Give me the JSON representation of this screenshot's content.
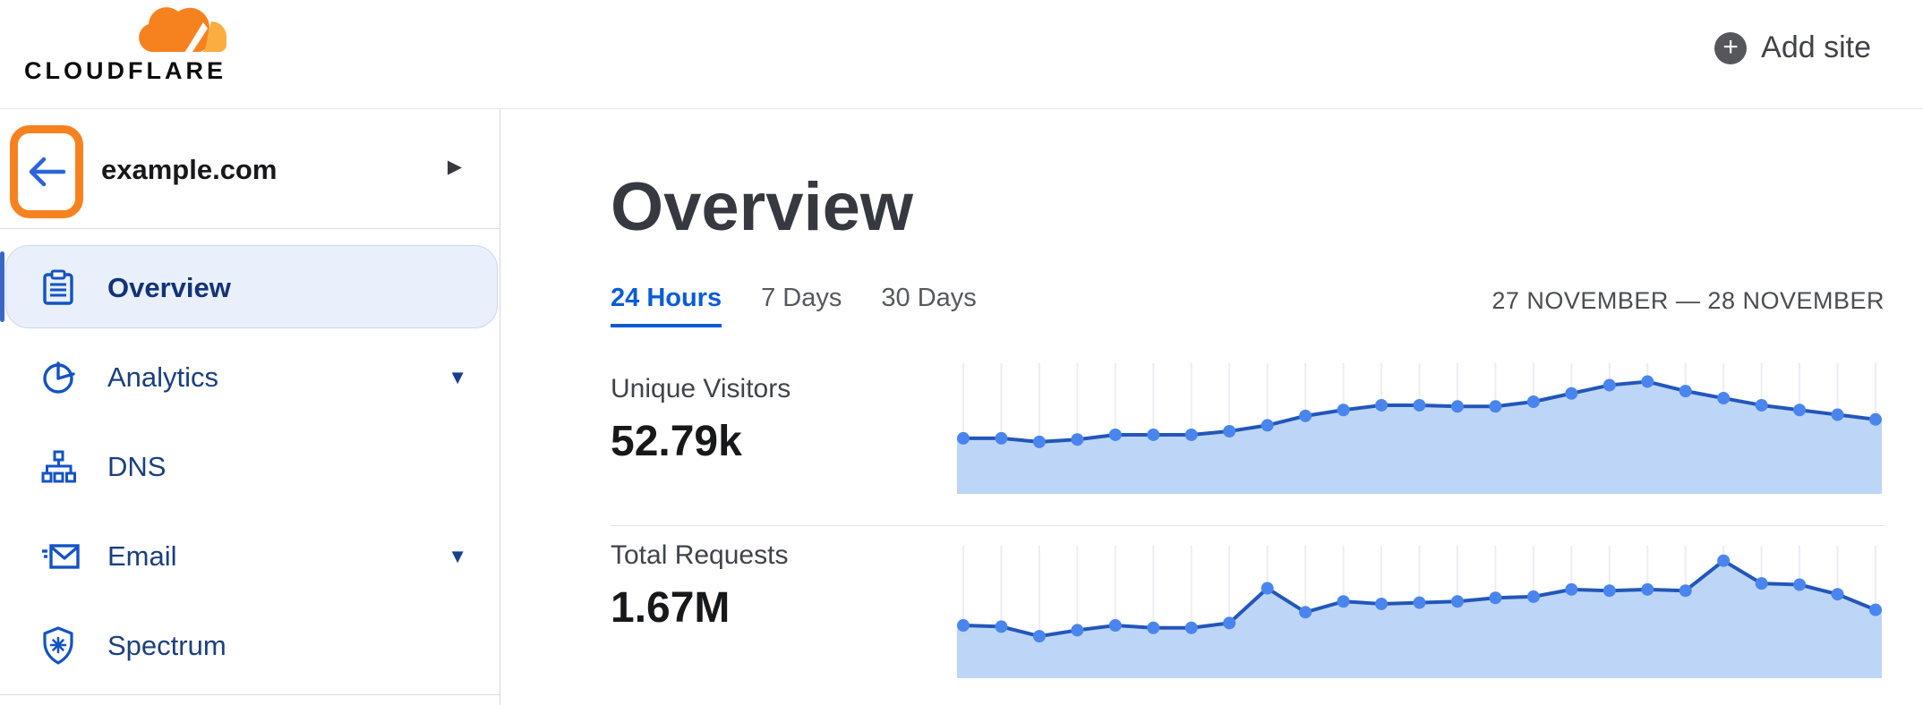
{
  "header": {
    "logo_text": "CLOUDFLARE",
    "add_site_label": "Add site",
    "add_site_icon": "plus-circle-icon"
  },
  "sidebar": {
    "site_switcher": {
      "name": "example.com",
      "expand_icon": "chevron-right-icon",
      "back_icon": "arrow-left-icon",
      "back_highlight_color": "#f6821f"
    },
    "items": [
      {
        "label": "Overview",
        "icon": "clipboard-icon",
        "selected": true,
        "has_submenu": false
      },
      {
        "label": "Analytics",
        "icon": "pie-chart-icon",
        "selected": false,
        "has_submenu": true
      },
      {
        "label": "DNS",
        "icon": "network-tree-icon",
        "selected": false,
        "has_submenu": false
      },
      {
        "label": "Email",
        "icon": "envelope-icon",
        "selected": false,
        "has_submenu": true
      },
      {
        "label": "Spectrum",
        "icon": "shield-icon",
        "selected": false,
        "has_submenu": false
      }
    ]
  },
  "main": {
    "title": "Overview",
    "tabs": [
      {
        "label": "24 Hours",
        "active": true
      },
      {
        "label": "7 Days",
        "active": false
      },
      {
        "label": "30 Days",
        "active": false
      }
    ],
    "date_range": "27 NOVEMBER — 28 NOVEMBER",
    "metrics": [
      {
        "label": "Unique Visitors",
        "value": "52.79k"
      },
      {
        "label": "Total Requests",
        "value": "1.67M"
      }
    ]
  },
  "colors": {
    "brand_orange": "#f6821f",
    "brand_orange_light": "#fbad41",
    "active_tab_blue": "#0b5cd5",
    "nav_icon_blue": "#1353c4",
    "nav_text_navy": "#1b3f7e",
    "selected_pill_bg": "#eaf0fb",
    "chart_dot": "#4a85ee",
    "chart_line": "#2356b9",
    "chart_fill": "#bdd6f7",
    "chart_grid": "#ededf2"
  },
  "chart_data": [
    {
      "type": "area",
      "title": "Unique Visitors",
      "period": "24 Hours",
      "total": "52.79k",
      "x_axis": "time (hourly points, 27 Nov — 28 Nov, unlabeled)",
      "y_axis": "unique visitors (unlabeled)",
      "n_points": 25,
      "values_unit": "relative_height_pct (no numeric axis shown on screen)",
      "points_relative_pct": [
        44,
        44,
        41,
        43,
        47,
        47,
        47,
        50,
        55,
        63,
        68,
        72,
        72,
        71,
        71,
        75,
        82,
        89,
        92,
        84,
        78,
        72,
        68,
        64,
        60
      ],
      "grid": "vertical-only",
      "legend": "none"
    },
    {
      "type": "area",
      "title": "Total Requests",
      "period": "24 Hours",
      "total": "1.67M",
      "x_axis": "time (hourly points, 27 Nov — 28 Nov, unlabeled)",
      "y_axis": "requests (unlabeled)",
      "n_points": 25,
      "values_unit": "relative_height_pct (no numeric axis shown on screen)",
      "points_relative_pct": [
        41,
        40,
        32,
        37,
        41,
        39,
        39,
        43,
        72,
        52,
        61,
        59,
        60,
        61,
        64,
        65,
        71,
        70,
        71,
        70,
        95,
        76,
        75,
        67,
        54
      ],
      "grid": "vertical-only",
      "legend": "none"
    }
  ]
}
